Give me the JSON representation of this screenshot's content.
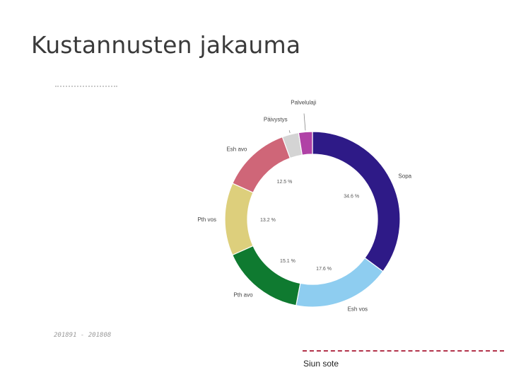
{
  "slide": {
    "title": "Kustannusten jakauma",
    "date_range": "201891 - 201808",
    "brand": "Siun sote"
  },
  "colors": {
    "title": "#3a3a3a",
    "footer_line": "#b2324a"
  },
  "chart_data": {
    "type": "pie",
    "variant": "donut",
    "legend": "none",
    "label_placement": "outside-names-inside-percents",
    "categories": [
      "Sopa",
      "Esh vos",
      "Pth avo",
      "Pth vos",
      "Esh avo",
      "Päivystys",
      "Palvelulaji"
    ],
    "values": [
      34.6,
      17.6,
      15.1,
      13.2,
      12.5,
      3.0,
      2.5
    ],
    "percent_labels": [
      "34.6 %",
      "17.6 %",
      "15.1 %",
      "13.2 %",
      "12.5 %",
      "",
      ""
    ],
    "colors": [
      "#2e1a87",
      "#8ecdf0",
      "#0f7a30",
      "#ddcf7c",
      "#cf6678",
      "#d4d4d4",
      "#b042a6"
    ]
  }
}
